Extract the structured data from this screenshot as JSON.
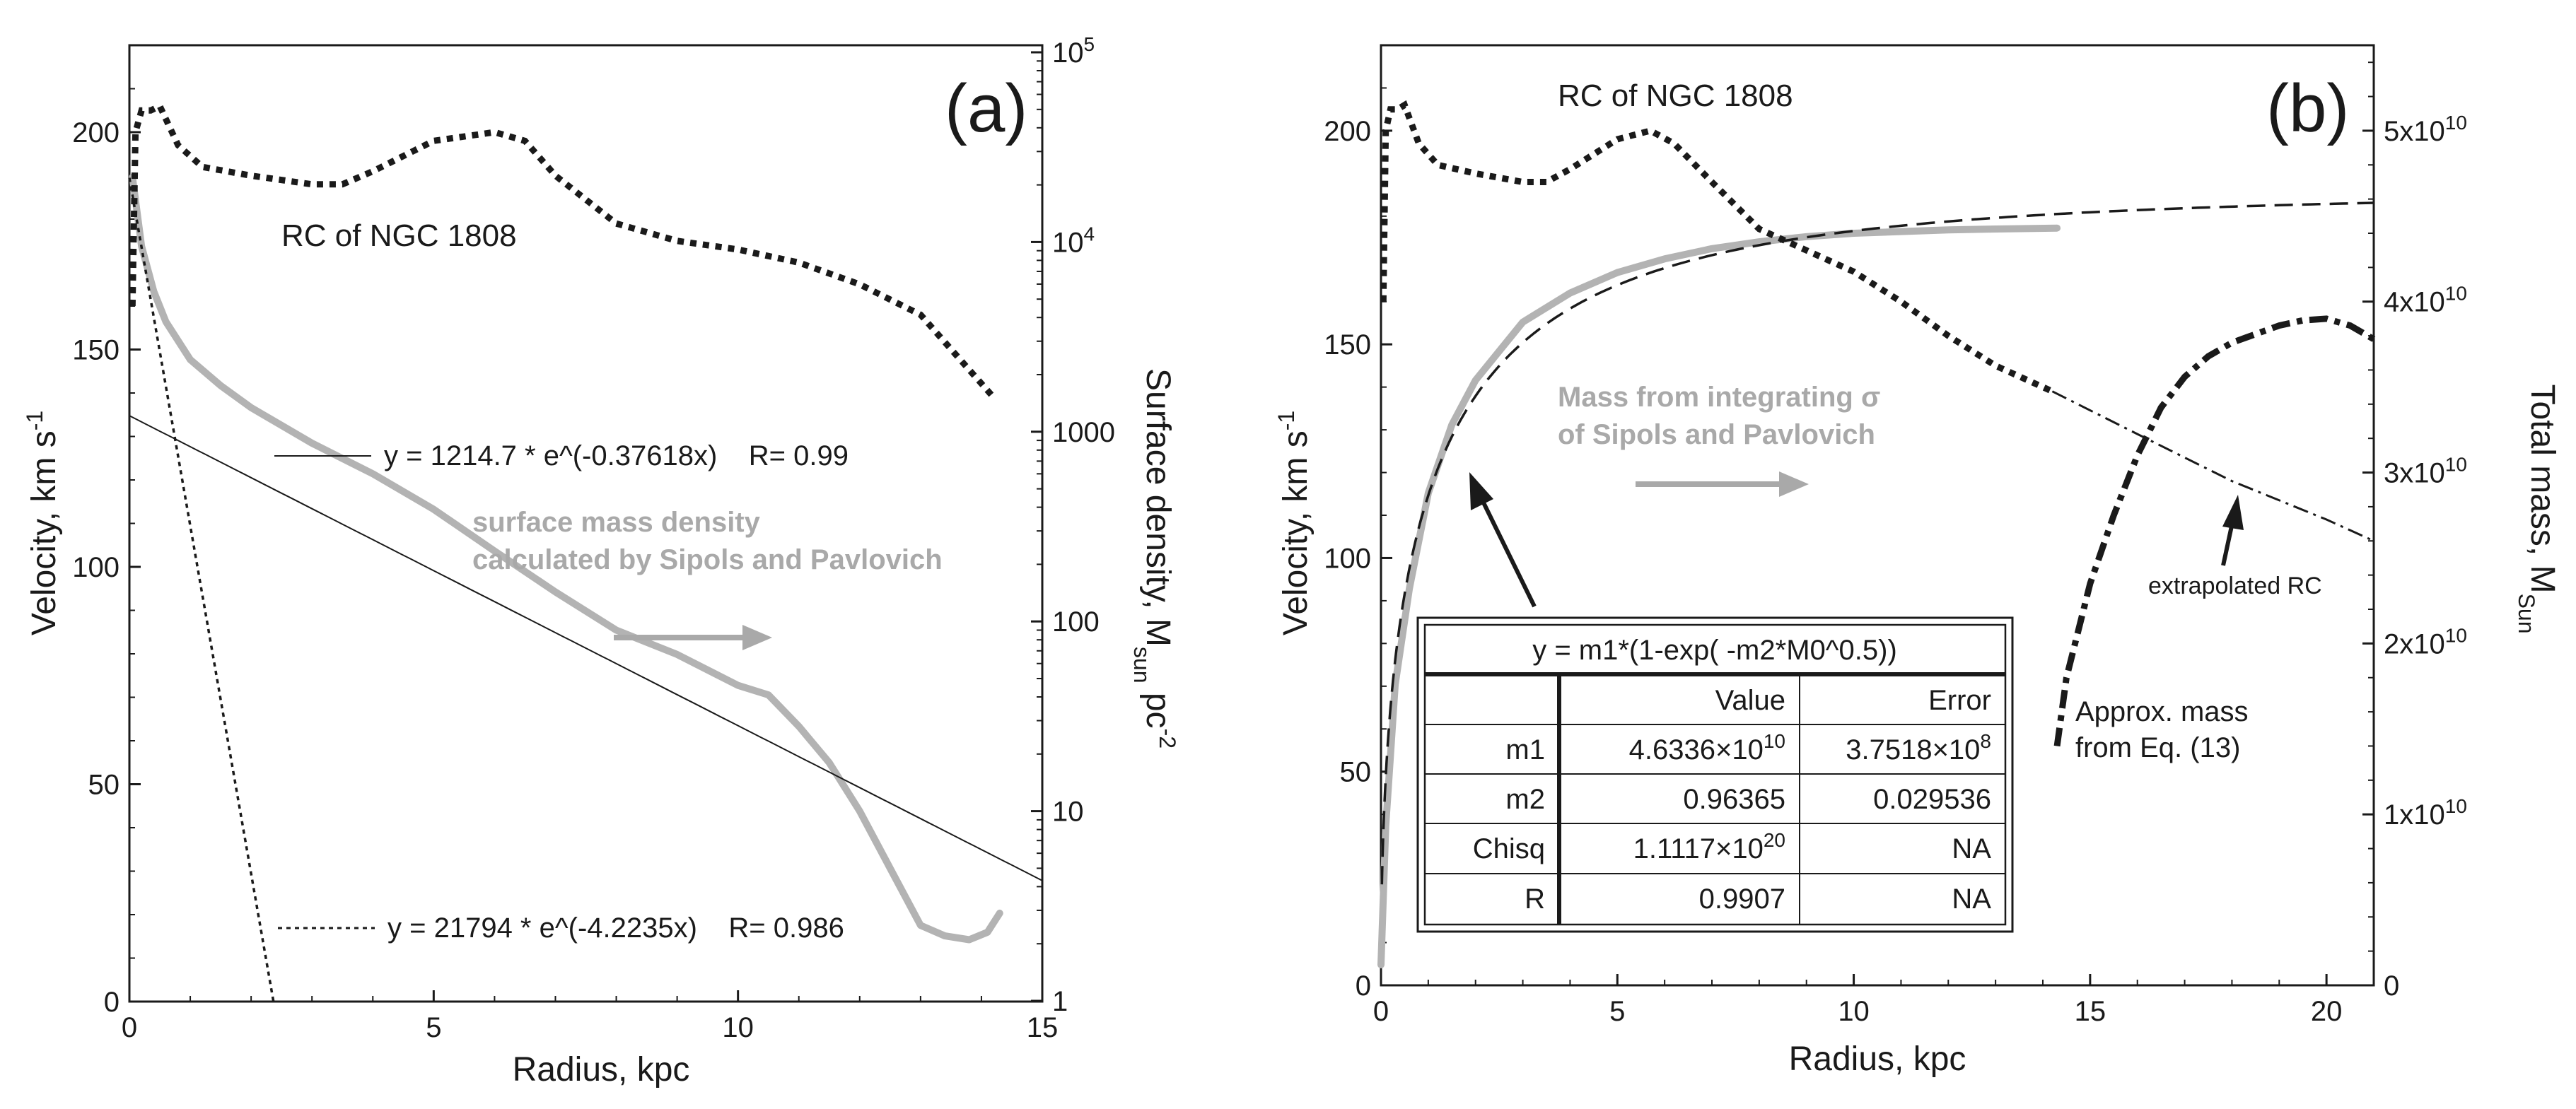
{
  "colors": {
    "ink": "#1a1a1a",
    "gray": "#b3b3b3",
    "white": "#ffffff"
  },
  "chart_data": [
    {
      "panel": "(a)",
      "type": "line",
      "xlabel": "Radius, kpc",
      "ylabel": "Velocity, km s",
      "ylabel_sup": "-1",
      "y2label": "Surface density, M",
      "y2label_sub": "sun",
      "y2label_tail": "pc",
      "y2label_sup": "-2",
      "y2scale": "log",
      "xlim": [
        0,
        15
      ],
      "ylim": [
        0,
        220
      ],
      "y2lim": [
        1,
        100000
      ],
      "xticks": [
        "0",
        "5",
        "10",
        "15"
      ],
      "yticks": [
        "0",
        "50",
        "100",
        "150",
        "200"
      ],
      "y2ticks": [
        {
          "v": 1,
          "label": "1"
        },
        {
          "v": 10,
          "label": "10"
        },
        {
          "v": 100,
          "label": "100"
        },
        {
          "v": 1000,
          "label": "1000"
        },
        {
          "v": 10000,
          "label": "10",
          "sup": "4"
        },
        {
          "v": 100000,
          "label": "10",
          "sup": "5"
        }
      ],
      "annotations": {
        "rc_label": "RC of NGC 1808",
        "fit1": "y = 1214.7 * e^(-0.37618x)    R= 0.99",
        "fit2": "y = 21794 * e^(-4.2235x)    R= 0.986",
        "sd_line1": "surface mass density",
        "sd_line2": "calculated by Sipols and Pavlovich"
      },
      "series": [
        {
          "name": "RC of NGC 1808",
          "axis": "left",
          "style": "dotted",
          "x": [
            0.05,
            0.1,
            0.2,
            0.35,
            0.5,
            0.6,
            0.8,
            1.2,
            2,
            3,
            3.5,
            4,
            5,
            6,
            6.5,
            7,
            8,
            9,
            10,
            11,
            12,
            13,
            14.2
          ],
          "y": [
            160,
            200,
            205,
            205,
            206,
            203,
            197,
            192,
            190,
            188,
            188,
            191,
            198,
            200,
            198,
            190,
            179,
            175,
            173,
            170,
            165,
            158,
            139
          ]
        },
        {
          "name": "surface mass density",
          "axis": "right",
          "style": "gray-solid",
          "x": [
            0.05,
            0.2,
            0.4,
            0.6,
            1,
            1.5,
            2,
            3,
            4,
            5,
            6,
            7,
            8,
            9,
            10,
            10.5,
            11,
            11.5,
            12,
            12.5,
            13,
            13.4,
            13.8,
            14.1,
            14.3
          ],
          "y": [
            22000,
            9500,
            5500,
            3800,
            2400,
            1750,
            1340,
            870,
            600,
            390,
            235,
            143,
            90,
            67,
            46,
            41,
            28,
            18,
            10,
            5,
            2.5,
            2.2,
            2.1,
            2.3,
            2.9
          ]
        },
        {
          "name": "fit1",
          "axis": "right",
          "style": "thin-solid",
          "fit": {
            "a": 1214.7,
            "b": -0.37618
          },
          "x_range": [
            0,
            15
          ]
        },
        {
          "name": "fit2",
          "axis": "right",
          "style": "thin-dotted",
          "fit": {
            "a": 21794,
            "b": -4.2235
          },
          "x_range": [
            0,
            2.37
          ]
        }
      ]
    },
    {
      "panel": "(b)",
      "type": "line",
      "xlabel": "Radius, kpc",
      "ylabel": "Velocity, km s",
      "ylabel_sup": "-1",
      "y2label": "Total mass, M",
      "y2label_sub": "Sun",
      "xlim": [
        0,
        21
      ],
      "ylim": [
        0,
        220
      ],
      "y2lim": [
        0,
        55000000000
      ],
      "xticks": [
        "0",
        "5",
        "10",
        "15",
        "20"
      ],
      "yticks": [
        "0",
        "50",
        "100",
        "150",
        "200"
      ],
      "y2ticks": [
        {
          "v": 0,
          "label": "0"
        },
        {
          "v": 10000000000,
          "label": "1x10",
          "sup": "10"
        },
        {
          "v": 20000000000,
          "label": "2x10",
          "sup": "10"
        },
        {
          "v": 30000000000,
          "label": "3x10",
          "sup": "10"
        },
        {
          "v": 40000000000,
          "label": "4x10",
          "sup": "10"
        },
        {
          "v": 50000000000,
          "label": "5x10",
          "sup": "10"
        }
      ],
      "annotations": {
        "rc_label": "RC of NGC 1808",
        "mass_line1": "Mass from integrating σ",
        "mass_line2": "of Sipols and Pavlovich",
        "extrap": "extrapolated RC",
        "approx1": "Approx. mass",
        "approx2": "from Eq. (13)"
      },
      "fit_table": {
        "equation": "y = m1*(1-exp( -m2*M0^0.5))",
        "headers": [
          "",
          "Value",
          "Error"
        ],
        "rows": [
          {
            "name": "m1",
            "value": "4.6336×10",
            "value_sup": "10",
            "error": "3.7518×10",
            "error_sup": "8"
          },
          {
            "name": "m2",
            "value": "0.96365",
            "value_sup": "",
            "error": "0.029536",
            "error_sup": ""
          },
          {
            "name": "Chisq",
            "value": "1.1117×10",
            "value_sup": "20",
            "error": "NA",
            "error_sup": ""
          },
          {
            "name": "R",
            "value": "0.9907",
            "value_sup": "",
            "error": "NA",
            "error_sup": ""
          }
        ]
      },
      "series": [
        {
          "name": "RC of NGC 1808",
          "axis": "left",
          "style": "dotted",
          "x": [
            0.05,
            0.1,
            0.2,
            0.35,
            0.5,
            0.6,
            0.8,
            1.2,
            2,
            3,
            3.5,
            4,
            5,
            5.7,
            6.2,
            7,
            8,
            9,
            10,
            11,
            12,
            13,
            14.2
          ],
          "y": [
            160,
            200,
            205,
            205,
            206,
            203,
            197,
            192,
            190,
            188,
            188,
            191,
            198,
            200,
            197,
            188,
            177,
            172,
            167,
            160,
            152,
            145,
            139
          ]
        },
        {
          "name": "extrapolated RC",
          "axis": "left",
          "style": "dash-dot-thin",
          "x": [
            14.2,
            16,
            18,
            20,
            21
          ],
          "y": [
            139,
            129,
            118,
            109,
            104
          ]
        },
        {
          "name": "Mass from integrating sigma",
          "axis": "right",
          "style": "gray-solid",
          "x": [
            0,
            0.1,
            0.3,
            0.6,
            1,
            1.5,
            2,
            3,
            4,
            5,
            6,
            7,
            8,
            9,
            10,
            11,
            12,
            13,
            14.3
          ],
          "y": [
            1200000000,
            9300000000,
            17600000000,
            23200000000,
            28800000000,
            32800000000,
            35400000000,
            38800000000,
            40500000000,
            41700000000,
            42500000000,
            43100000000,
            43500000000,
            43800000000,
            44000000000,
            44100000000,
            44200000000,
            44250000000,
            44300000000
          ]
        },
        {
          "name": "fit",
          "axis": "right",
          "style": "dashed",
          "fit_ref": "fit_table",
          "x_range": [
            0.02,
            21
          ]
        },
        {
          "name": "Approx. mass from Eq. (13)",
          "axis": "right",
          "style": "dash-dot-thick",
          "x": [
            14.3,
            14.5,
            15,
            15.5,
            16,
            16.5,
            17,
            17.5,
            18,
            18.5,
            19,
            19.5,
            20,
            20.5,
            21
          ],
          "y": [
            14000000000,
            18000000000,
            23500000000,
            27500000000,
            31000000000,
            33800000000,
            35600000000,
            36800000000,
            37600000000,
            38100000000,
            38600000000,
            38900000000,
            39000000000,
            38600000000,
            37800000000
          ]
        }
      ]
    }
  ]
}
